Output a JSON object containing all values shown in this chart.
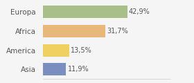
{
  "categories": [
    "Europa",
    "Africa",
    "America",
    "Asia"
  ],
  "values": [
    42.9,
    31.7,
    13.5,
    11.9
  ],
  "labels": [
    "42,9%",
    "31,7%",
    "13,5%",
    "11,9%"
  ],
  "bar_colors": [
    "#a8bf8a",
    "#e8b87a",
    "#f0d060",
    "#7a8fbf"
  ],
  "background_color": "#f5f5f5",
  "xlim": [
    0,
    65
  ],
  "label_fontsize": 7,
  "category_fontsize": 7.5,
  "bar_height": 0.65
}
